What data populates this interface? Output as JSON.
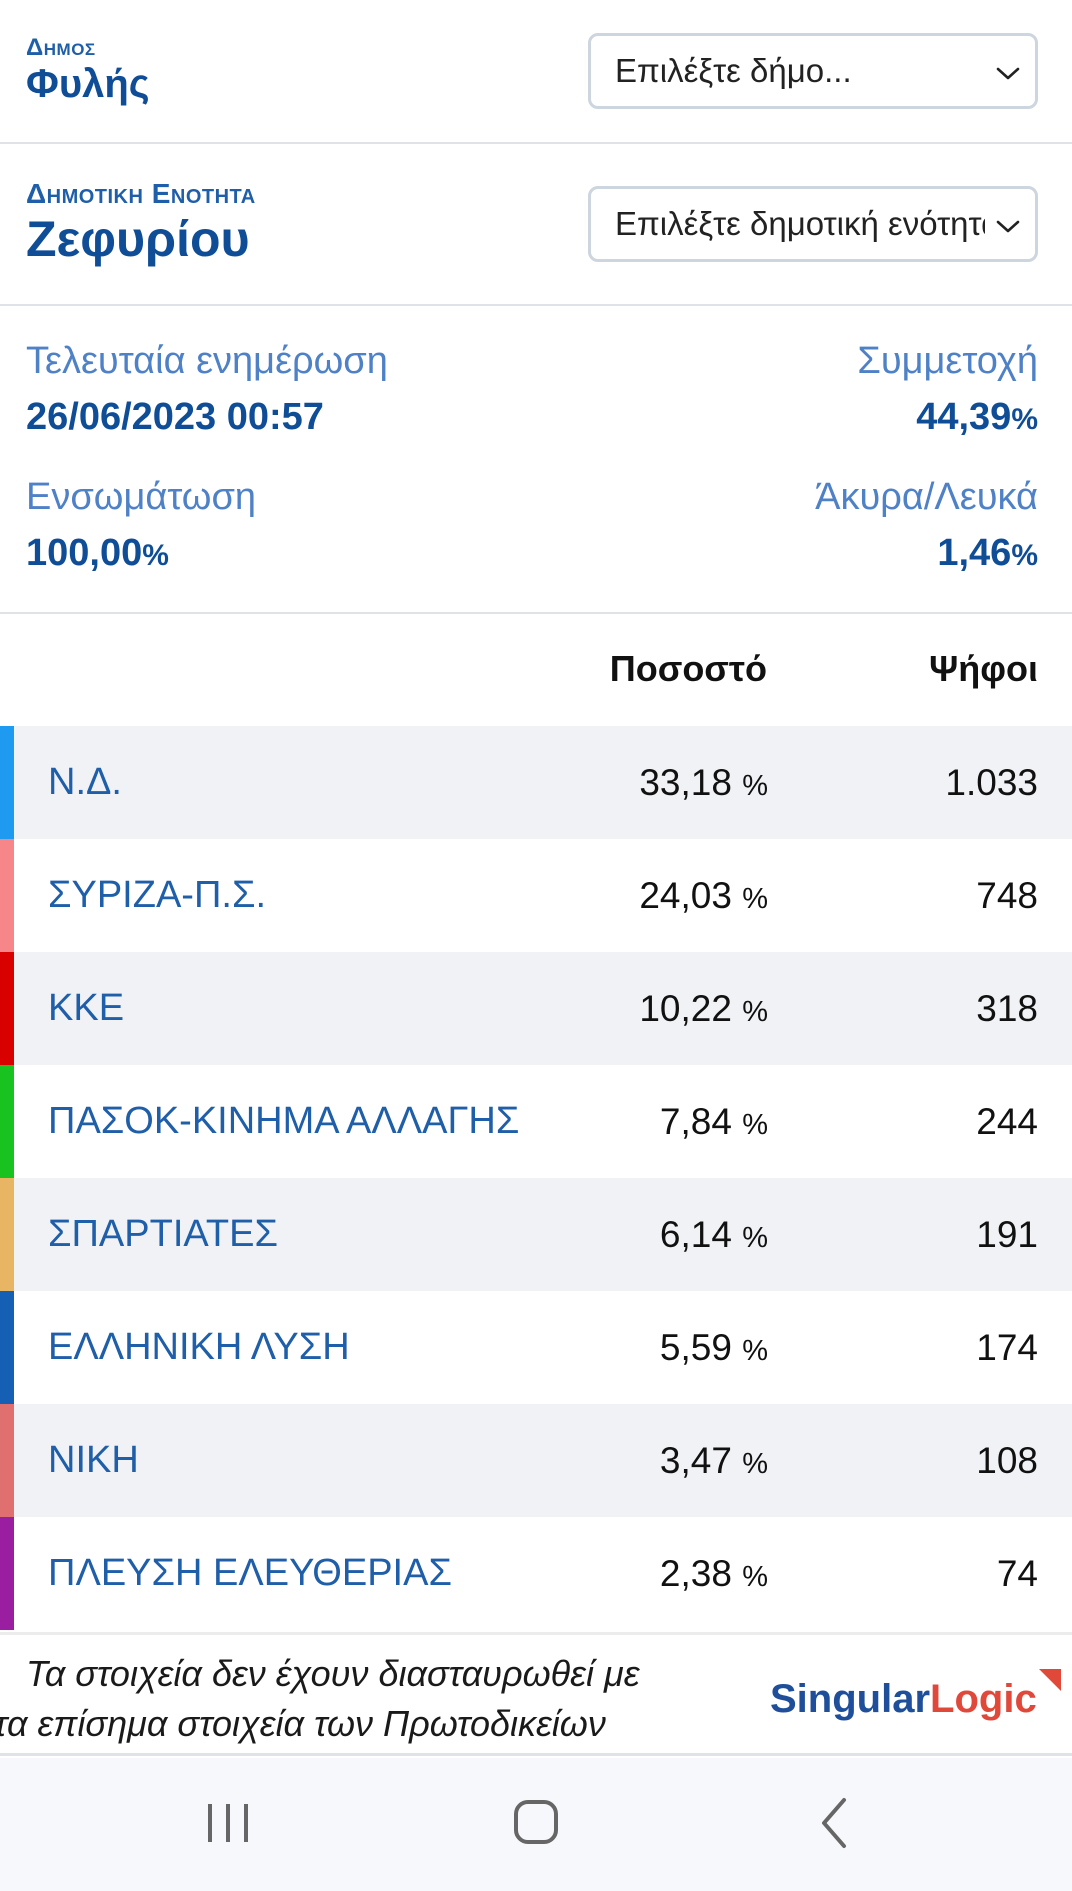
{
  "municipality": {
    "label": "Δημος",
    "value": "Φυλής",
    "select_text": "Επιλέξτε δήμο..."
  },
  "unit": {
    "label": "Δημοτικη Ενοτητα",
    "value": "Ζεφυρίου",
    "select_text": "Επιλέξτε δημοτική ενότητα"
  },
  "stats": {
    "last_update_label": "Τελευταία ενημέρωση",
    "last_update_value": "26/06/2023 00:57",
    "turnout_label": "Συμμετοχή",
    "turnout_value": "44,39",
    "integration_label": "Ενσωμάτωση",
    "integration_value": "100,00",
    "invalid_label": "Άκυρα/Λευκά",
    "invalid_value": "1,46",
    "pct_sign": "%"
  },
  "table": {
    "col_percent": "Ποσοστό",
    "col_votes": "Ψήφοι",
    "unit": "%",
    "rows": [
      {
        "party": "Ν.Δ.",
        "percent": "33,18",
        "votes": "1.033",
        "color": "#1e9bf0"
      },
      {
        "party": "ΣΥΡΙΖΑ-Π.Σ.",
        "percent": "24,03",
        "votes": "748",
        "color": "#f7868a"
      },
      {
        "party": "ΚΚΕ",
        "percent": "10,22",
        "votes": "318",
        "color": "#d90000"
      },
      {
        "party": "ΠΑΣΟΚ-ΚΙΝΗΜΑ ΑΛΛΑΓΗΣ",
        "percent": "7,84",
        "votes": "244",
        "color": "#19c31f"
      },
      {
        "party": "ΣΠΑΡΤΙΑΤΕΣ",
        "percent": "6,14",
        "votes": "191",
        "color": "#e8b564"
      },
      {
        "party": "ΕΛΛΗΝΙΚΗ ΛΥΣΗ",
        "percent": "5,59",
        "votes": "174",
        "color": "#1560b5"
      },
      {
        "party": "ΝΙΚΗ",
        "percent": "3,47",
        "votes": "108",
        "color": "#e07070"
      },
      {
        "party": "ΠΛΕΥΣΗ ΕΛΕΥΘΕΡΙΑΣ",
        "percent": "2,38",
        "votes": "74",
        "color": "#9a1fa0"
      }
    ]
  },
  "footer": {
    "disclaimer_line1": "Τα στοιχεία δεν έχουν διασταυρωθεί με",
    "disclaimer_line2": "τα επίσημα στοιχεία των Πρωτοδικείων",
    "logo_part1": "Singular",
    "logo_part2": "Logic"
  },
  "nav": {
    "recent_icon": "recent-apps-icon",
    "home_icon": "home-icon",
    "back_icon": "back-icon"
  }
}
